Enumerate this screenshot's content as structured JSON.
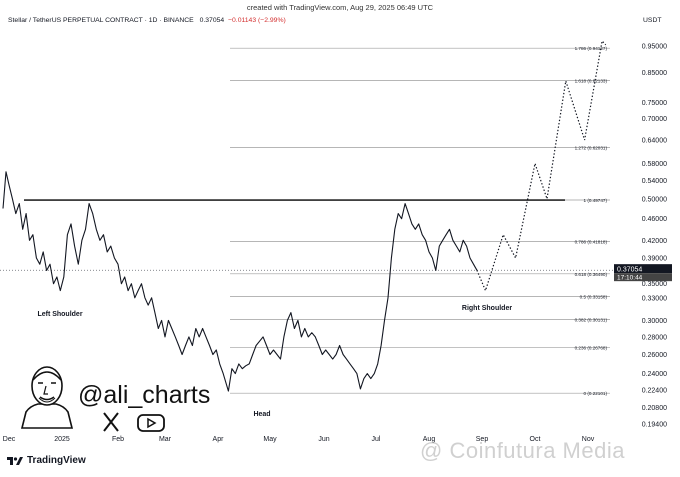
{
  "meta_line": "created with TradingView.com, Aug 29, 2025 06:49 UTC",
  "header": {
    "symbol": "Stellar / TetherUS PERPETUAL CONTRACT · 1D · BINANCE",
    "price": "0.37054",
    "change": "−0.01143 (−2.99%)"
  },
  "currency": "USDT",
  "brand": {
    "name": "TradingView"
  },
  "watermark": "@ Coinfutura Media",
  "author": {
    "handle": "@ali_charts",
    "social_icons": [
      "x-icon",
      "youtube-icon"
    ]
  },
  "colors": {
    "price_line": "#131722",
    "fib_line": "#9e9e9e",
    "resistance_line": "#000000",
    "price_badge": "#131722",
    "price_badge_time": "#444444"
  },
  "chart_data": {
    "type": "line",
    "title": "Stellar / TetherUS PERPETUAL CONTRACT · 1D · BINANCE",
    "x_ticks": [
      "Dec",
      "2025",
      "Feb",
      "Mar",
      "Apr",
      "May",
      "Jun",
      "Jul",
      "Aug",
      "Sep",
      "Oct",
      "Nov"
    ],
    "y_scale": "log",
    "y_ticks": [
      0.95,
      0.85,
      0.75,
      0.7,
      0.64,
      0.58,
      0.54,
      0.5,
      0.46,
      0.42,
      0.39,
      0.35,
      0.33,
      0.3,
      0.28,
      0.26,
      0.24,
      0.224,
      0.208,
      0.194
    ],
    "y_tick_labels": [
      "0.95000",
      "0.85000",
      "0.75000",
      "0.70000",
      "0.64000",
      "0.58000",
      "0.54000",
      "0.50000",
      "0.46000",
      "0.42000",
      "0.39000",
      "0.35000",
      "0.33000",
      "0.30000",
      "0.28000",
      "0.26000",
      "0.24000",
      "0.22400",
      "0.20800",
      "0.19400"
    ],
    "last_price": {
      "value": 0.37054,
      "label": "0.37054",
      "time_label": "17:10:44"
    },
    "fib_levels": [
      {
        "label": "1.786 (0.94127)",
        "value": 0.94127
      },
      {
        "label": "1.618 (0.82133)",
        "value": 0.82133
      },
      {
        "label": "1.272 (0.62031)",
        "value": 0.62031
      },
      {
        "label": "1 (0.49747)",
        "value": 0.49747
      },
      {
        "label": "0.786 (0.41818)",
        "value": 0.41818
      },
      {
        "label": "0.618 (0.36490)",
        "value": 0.3649
      },
      {
        "label": "0.5 (0.33158)",
        "value": 0.33158
      },
      {
        "label": "0.382 (0.30131)",
        "value": 0.30131
      },
      {
        "label": "0.236 (0.26768)",
        "value": 0.26768
      },
      {
        "label": "0 (0.22101)",
        "value": 0.22101
      }
    ],
    "annotations": [
      "Left Shoulder",
      "Head",
      "Right Shoulder"
    ],
    "series": [
      {
        "points": [
          [
            "Nov 27",
            0.48
          ],
          [
            "Nov 29",
            0.56
          ],
          [
            "Dec 1",
            0.53
          ],
          [
            "Dec 3",
            0.5
          ],
          [
            "Dec 5",
            0.47
          ],
          [
            "Dec 7",
            0.49
          ],
          [
            "Dec 9",
            0.44
          ],
          [
            "Dec 11",
            0.47
          ],
          [
            "Dec 13",
            0.42
          ],
          [
            "Dec 15",
            0.43
          ],
          [
            "Dec 17",
            0.39
          ],
          [
            "Dec 19",
            0.38
          ],
          [
            "Dec 21",
            0.4
          ],
          [
            "Dec 23",
            0.37
          ],
          [
            "Dec 25",
            0.38
          ],
          [
            "Dec 27",
            0.35
          ],
          [
            "Dec 29",
            0.36
          ],
          [
            "Dec 31",
            0.34
          ],
          [
            "Jan 2",
            0.36
          ],
          [
            "Jan 4",
            0.43
          ],
          [
            "Jan 6",
            0.45
          ],
          [
            "Jan 8",
            0.41
          ],
          [
            "Jan 10",
            0.38
          ],
          [
            "Jan 12",
            0.42
          ],
          [
            "Jan 14",
            0.44
          ],
          [
            "Jan 16",
            0.49
          ],
          [
            "Jan 18",
            0.47
          ],
          [
            "Jan 20",
            0.44
          ],
          [
            "Jan 22",
            0.42
          ],
          [
            "Jan 24",
            0.43
          ],
          [
            "Jan 26",
            0.4
          ],
          [
            "Jan 28",
            0.41
          ],
          [
            "Jan 30",
            0.39
          ],
          [
            "Feb 1",
            0.38
          ],
          [
            "Feb 3",
            0.35
          ],
          [
            "Feb 5",
            0.36
          ],
          [
            "Feb 7",
            0.34
          ],
          [
            "Feb 9",
            0.35
          ],
          [
            "Feb 11",
            0.33
          ],
          [
            "Feb 13",
            0.34
          ],
          [
            "Feb 15",
            0.35
          ],
          [
            "Feb 17",
            0.33
          ],
          [
            "Feb 19",
            0.32
          ],
          [
            "Feb 21",
            0.33
          ],
          [
            "Feb 23",
            0.31
          ],
          [
            "Feb 25",
            0.29
          ],
          [
            "Feb 27",
            0.3
          ],
          [
            "Mar 1",
            0.28
          ],
          [
            "Mar 3",
            0.3
          ],
          [
            "Mar 5",
            0.29
          ],
          [
            "Mar 7",
            0.28
          ],
          [
            "Mar 9",
            0.27
          ],
          [
            "Mar 11",
            0.26
          ],
          [
            "Mar 13",
            0.27
          ],
          [
            "Mar 15",
            0.28
          ],
          [
            "Mar 17",
            0.27
          ],
          [
            "Mar 19",
            0.29
          ],
          [
            "Mar 21",
            0.28
          ],
          [
            "Mar 23",
            0.29
          ],
          [
            "Mar 25",
            0.28
          ],
          [
            "Mar 27",
            0.27
          ],
          [
            "Mar 29",
            0.26
          ],
          [
            "Mar 31",
            0.265
          ],
          [
            "Apr 2",
            0.25
          ],
          [
            "Apr 4",
            0.24
          ],
          [
            "Apr 7",
            0.223
          ],
          [
            "Apr 9",
            0.245
          ],
          [
            "Apr 11",
            0.24
          ],
          [
            "Apr 13",
            0.25
          ],
          [
            "Apr 15",
            0.245
          ],
          [
            "Apr 17",
            0.248
          ],
          [
            "Apr 19",
            0.25
          ],
          [
            "Apr 21",
            0.26
          ],
          [
            "Apr 23",
            0.27
          ],
          [
            "Apr 25",
            0.275
          ],
          [
            "Apr 27",
            0.28
          ],
          [
            "Apr 29",
            0.27
          ],
          [
            "May 1",
            0.26
          ],
          [
            "May 3",
            0.265
          ],
          [
            "May 5",
            0.26
          ],
          [
            "May 7",
            0.255
          ],
          [
            "May 9",
            0.28
          ],
          [
            "May 11",
            0.3
          ],
          [
            "May 13",
            0.31
          ],
          [
            "May 15",
            0.29
          ],
          [
            "May 17",
            0.3
          ],
          [
            "May 19",
            0.28
          ],
          [
            "May 21",
            0.29
          ],
          [
            "May 23",
            0.28
          ],
          [
            "May 25",
            0.285
          ],
          [
            "May 27",
            0.28
          ],
          [
            "May 29",
            0.27
          ],
          [
            "May 31",
            0.26
          ],
          [
            "Jun 2",
            0.265
          ],
          [
            "Jun 4",
            0.26
          ],
          [
            "Jun 6",
            0.255
          ],
          [
            "Jun 8",
            0.26
          ],
          [
            "Jun 10",
            0.27
          ],
          [
            "Jun 12",
            0.26
          ],
          [
            "Jun 14",
            0.255
          ],
          [
            "Jun 16",
            0.25
          ],
          [
            "Jun 18",
            0.245
          ],
          [
            "Jun 20",
            0.24
          ],
          [
            "Jun 22",
            0.225
          ],
          [
            "Jun 24",
            0.235
          ],
          [
            "Jun 26",
            0.24
          ],
          [
            "Jun 28",
            0.235
          ],
          [
            "Jun 30",
            0.24
          ],
          [
            "Jul 2",
            0.25
          ],
          [
            "Jul 4",
            0.27
          ],
          [
            "Jul 6",
            0.3
          ],
          [
            "Jul 8",
            0.33
          ],
          [
            "Jul 10",
            0.39
          ],
          [
            "Jul 12",
            0.44
          ],
          [
            "Jul 14",
            0.47
          ],
          [
            "Jul 16",
            0.46
          ],
          [
            "Jul 18",
            0.49
          ],
          [
            "Jul 20",
            0.47
          ],
          [
            "Jul 22",
            0.45
          ],
          [
            "Jul 24",
            0.44
          ],
          [
            "Jul 26",
            0.45
          ],
          [
            "Jul 28",
            0.43
          ],
          [
            "Jul 30",
            0.42
          ],
          [
            "Aug 1",
            0.4
          ],
          [
            "Aug 3",
            0.39
          ],
          [
            "Aug 5",
            0.37
          ],
          [
            "Aug 7",
            0.41
          ],
          [
            "Aug 9",
            0.42
          ],
          [
            "Aug 11",
            0.43
          ],
          [
            "Aug 13",
            0.44
          ],
          [
            "Aug 15",
            0.42
          ],
          [
            "Aug 17",
            0.41
          ],
          [
            "Aug 19",
            0.4
          ],
          [
            "Aug 21",
            0.42
          ],
          [
            "Aug 23",
            0.41
          ],
          [
            "Aug 25",
            0.39
          ],
          [
            "Aug 27",
            0.38
          ],
          [
            "Aug 29",
            0.37054
          ]
        ]
      },
      {
        "style": "dotted",
        "points": [
          [
            "Aug 29",
            0.37054
          ],
          [
            "Sep 3",
            0.34
          ],
          [
            "Sep 13",
            0.43
          ],
          [
            "Sep 20",
            0.39
          ],
          [
            "Oct 1",
            0.58
          ],
          [
            "Oct 8",
            0.5
          ],
          [
            "Oct 19",
            0.82
          ],
          [
            "Oct 30",
            0.64
          ],
          [
            "Nov 9",
            0.97
          ],
          [
            "Nov 11",
            0.955
          ]
        ]
      }
    ]
  }
}
